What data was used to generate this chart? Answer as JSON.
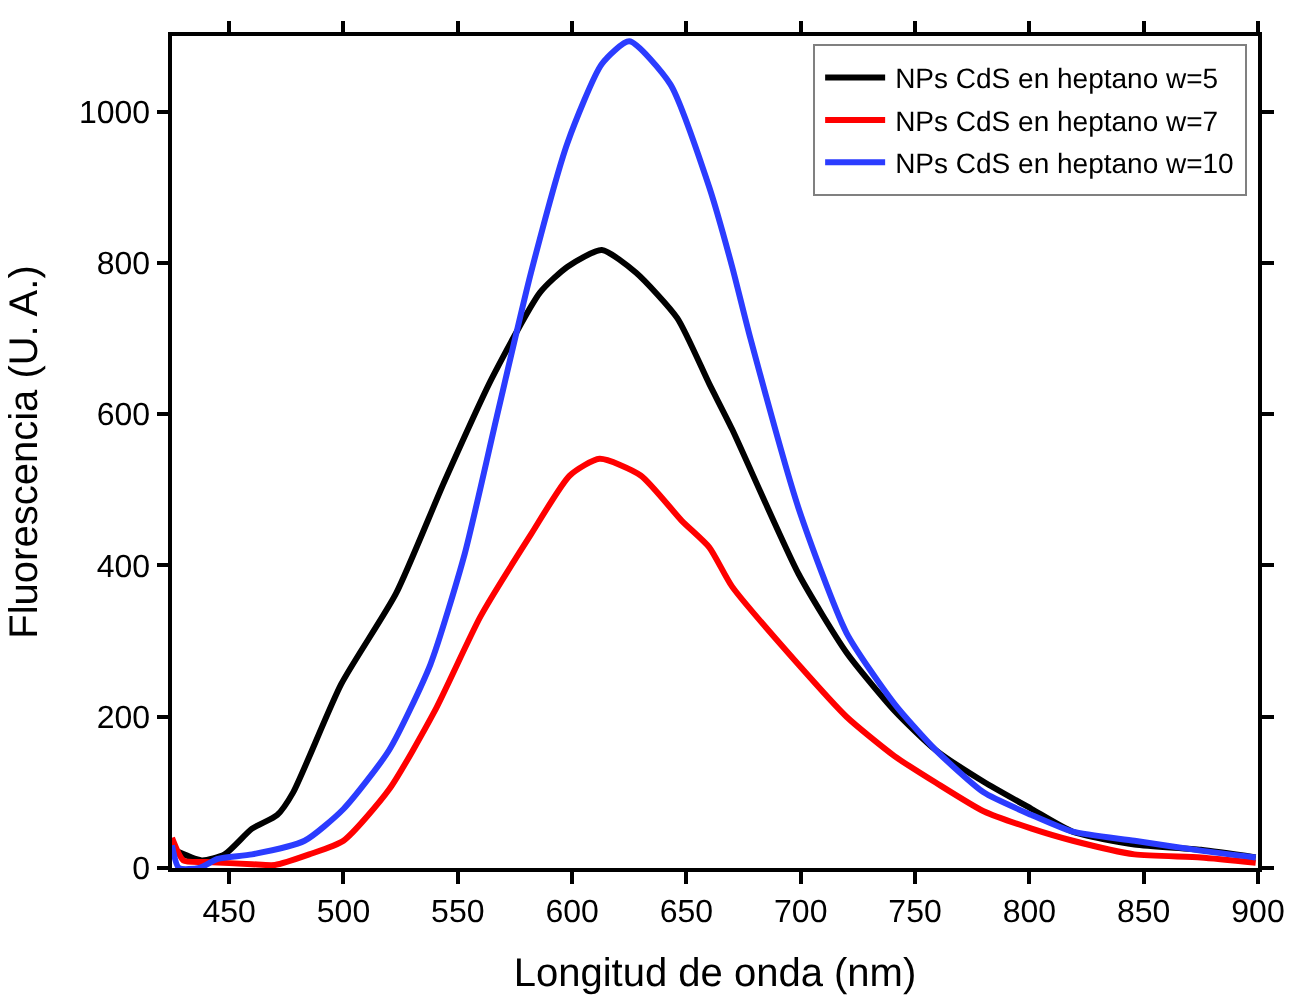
{
  "chart_data": {
    "type": "line",
    "xlabel": "Longitud de onda (nm)",
    "ylabel": "Fluorescencia (U. A.)",
    "xlim": [
      425,
      900
    ],
    "xticks": [
      450,
      500,
      550,
      600,
      650,
      700,
      750,
      800,
      850,
      900
    ],
    "ylim": [
      0,
      1100
    ],
    "yticks": [
      0,
      200,
      400,
      600,
      800,
      1000
    ],
    "legend": "top right",
    "marker": "none",
    "line_style": "solid",
    "series": [
      {
        "name": "NPs CdS en heptano w=5",
        "color": "#000000",
        "x": [
          425,
          438,
          448,
          460,
          471,
          478,
          499,
          523,
          544,
          565,
          586,
          598,
          613,
          628,
          646,
          660,
          670,
          699,
          720,
          741,
          759,
          780,
          801,
          819,
          846,
          875,
          899
        ],
        "values": [
          25,
          10,
          18,
          52,
          70,
          100,
          243,
          363,
          510,
          648,
          761,
          795,
          817,
          787,
          727,
          640,
          580,
          389,
          285,
          208,
          156,
          114,
          78,
          48,
          31,
          24,
          14
        ]
      },
      {
        "name": "NPs CdS en heptano w=7",
        "color": "#ff0000",
        "x": [
          425,
          430,
          440,
          460,
          470,
          485,
          500,
          520,
          540,
          560,
          582,
          599,
          612,
          630,
          648,
          660,
          670,
          699,
          720,
          741,
          759,
          780,
          801,
          819,
          846,
          875,
          899
        ],
        "values": [
          40,
          10,
          8,
          5,
          4,
          18,
          36,
          104,
          208,
          333,
          441,
          519,
          541,
          519,
          459,
          424,
          372,
          269,
          200,
          148,
          113,
          75,
          52,
          36,
          18,
          14,
          7
        ]
      },
      {
        "name": "NPs CdS en heptano w=10",
        "color": "#2b3cff",
        "x": [
          425,
          428,
          437,
          445,
          460,
          483,
          500,
          520,
          538,
          553,
          567,
          582,
          598,
          613,
          625,
          643,
          660,
          670,
          678,
          699,
          720,
          741,
          759,
          780,
          801,
          819,
          846,
          875,
          899
        ],
        "values": [
          30,
          0,
          0,
          12,
          18,
          36,
          78,
          156,
          269,
          415,
          596,
          787,
          959,
          1063,
          1093,
          1036,
          900,
          795,
          700,
          476,
          311,
          217,
          156,
          100,
          70,
          48,
          36,
          23,
          14
        ]
      }
    ]
  }
}
